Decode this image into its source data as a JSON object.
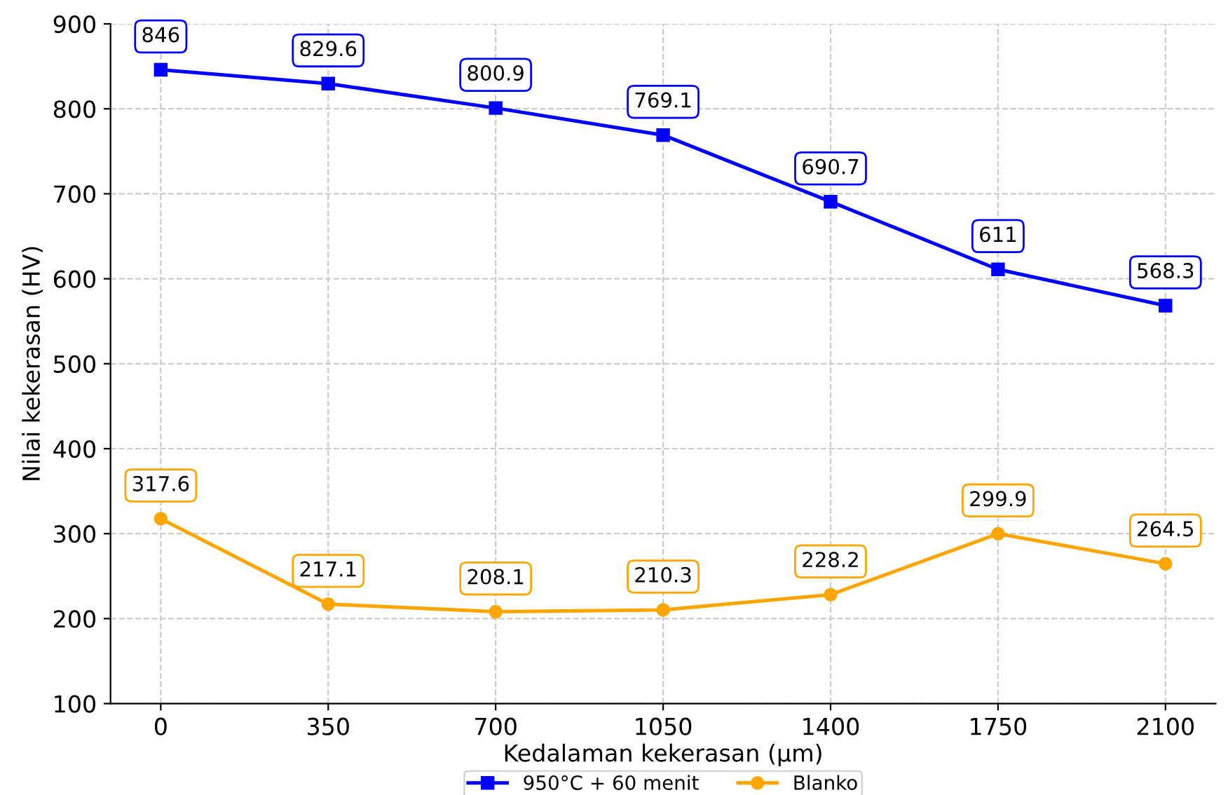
{
  "chart_data": {
    "type": "line",
    "xlabel": "Kedalaman kekerasan (µm)",
    "ylabel": "Nilai kekerasan (HV)",
    "x": [
      0,
      350,
      700,
      1050,
      1400,
      1750,
      2100
    ],
    "series": [
      {
        "name": "950°C + 60 menit",
        "color": "#0000ff",
        "marker": "square",
        "values": [
          846,
          829.6,
          800.9,
          769.1,
          690.7,
          611,
          568.3
        ]
      },
      {
        "name": "Blanko",
        "color": "#ffa500",
        "marker": "circle",
        "values": [
          317.6,
          217.1,
          208.1,
          210.3,
          228.2,
          299.9,
          264.5
        ]
      }
    ],
    "xlim": [
      -105,
      2205
    ],
    "xticks": [
      0,
      350,
      700,
      1050,
      1400,
      1750,
      2100
    ],
    "ylim": [
      100,
      900
    ],
    "yticks": [
      100,
      200,
      300,
      400,
      500,
      600,
      700,
      800,
      900
    ],
    "grid": true,
    "legend": "bottom",
    "data_labels": true,
    "line_style": "solid"
  }
}
